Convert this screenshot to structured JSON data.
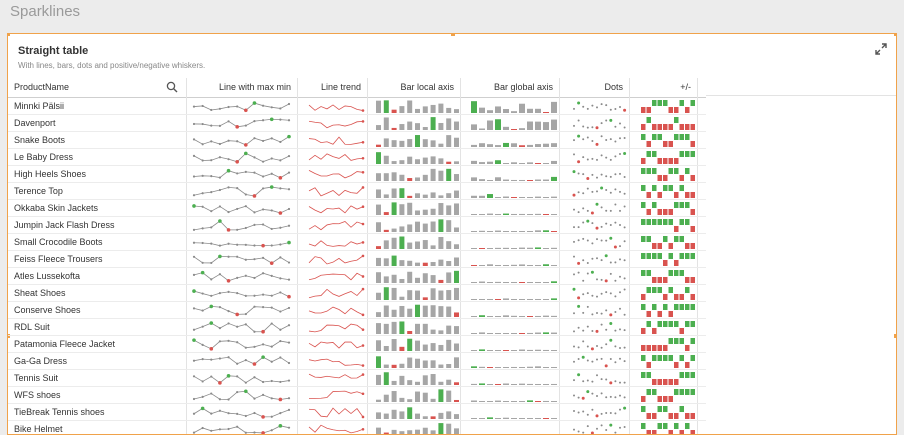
{
  "sheet": {
    "title": "Sparklines"
  },
  "card": {
    "title": "Straight table",
    "subtitle": "With lines, bars, dots and positive/negative whiskers."
  },
  "columns": {
    "product": "ProductName",
    "line_maxmin": "Line with max min",
    "line_trend": "Line trend",
    "bar_local": "Bar local axis",
    "bar_global": "Bar global axis",
    "dots": "Dots",
    "plusminus": "+/-"
  },
  "colors": {
    "accent": "#f0a24a",
    "positive": "#4caf50",
    "negative": "#d9534f",
    "neutral": "#a6a6a6",
    "trend": "#d9534f"
  },
  "rows": [
    {
      "name": "Minnki Pälsii"
    },
    {
      "name": "Davenport"
    },
    {
      "name": "Snake Boots"
    },
    {
      "name": "Le Baby Dress"
    },
    {
      "name": "High Heels Shoes"
    },
    {
      "name": "Terence Top"
    },
    {
      "name": "Okkaba Skin Jackets"
    },
    {
      "name": "Jumpin Jack Flash Dress"
    },
    {
      "name": "Small Crocodile Boots"
    },
    {
      "name": "Feiss Fleece Trousers"
    },
    {
      "name": "Atles Lussekofta"
    },
    {
      "name": "Sheat Shoes"
    },
    {
      "name": "Conserve Shoes"
    },
    {
      "name": "RDL Suit"
    },
    {
      "name": "Patamonia Fleece Jacket"
    },
    {
      "name": "Ga-Ga Dress"
    },
    {
      "name": "Tennis Suit"
    },
    {
      "name": "WFS shoes"
    },
    {
      "name": "TieBreak Tennis shoes"
    },
    {
      "name": "Bike Helmet"
    }
  ]
}
